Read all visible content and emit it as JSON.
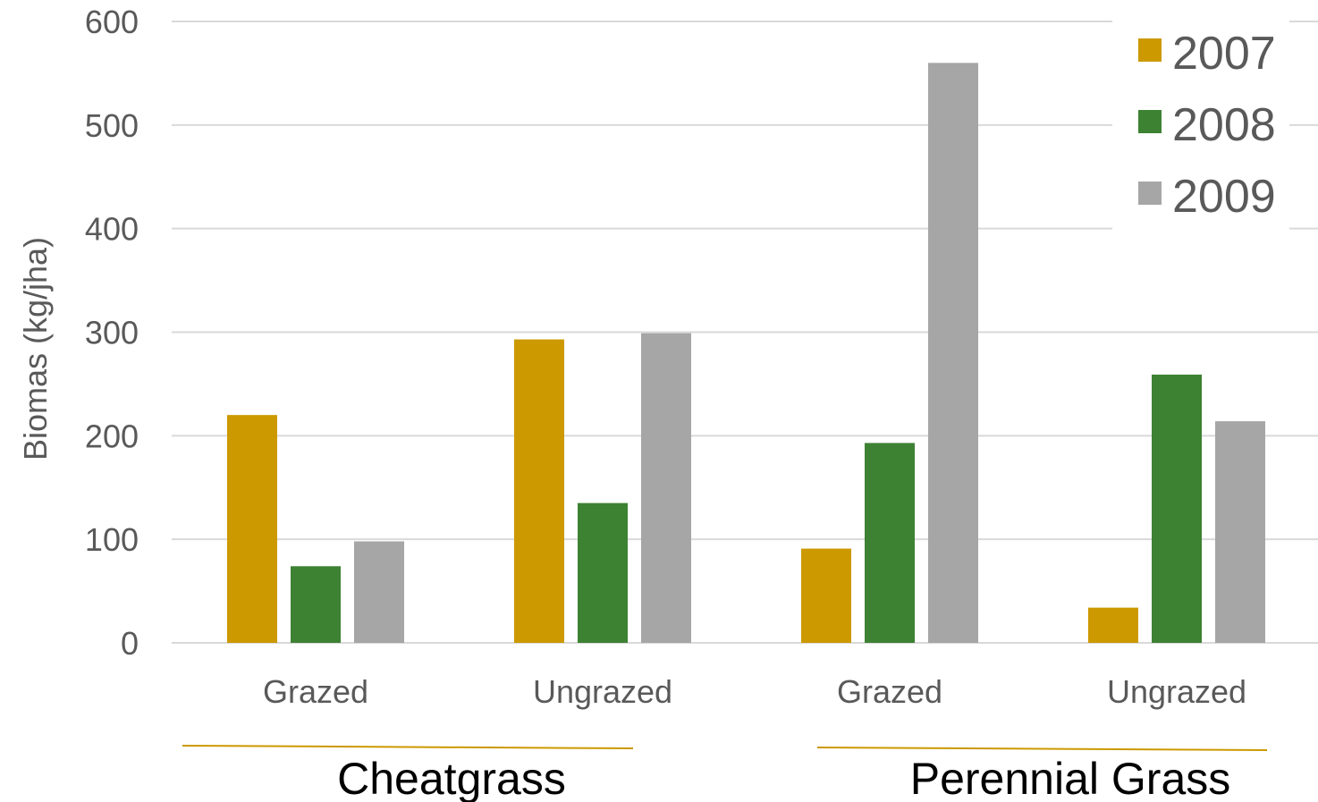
{
  "chart_data": {
    "type": "bar",
    "ylabel": "Biomas (kg/jha)",
    "ylim": [
      0,
      600
    ],
    "yticks": [
      0,
      100,
      200,
      300,
      400,
      500,
      600
    ],
    "grid": true,
    "legend_position": "top-right",
    "categories": [
      "Grazed",
      "Ungrazed",
      "Grazed",
      "Ungrazed"
    ],
    "category_groups": [
      {
        "label": "Cheatgrass",
        "categories": [
          0,
          1
        ]
      },
      {
        "label": "Perennial Grass",
        "categories": [
          2,
          3
        ]
      }
    ],
    "series": [
      {
        "name": "2007",
        "color": "#CC9900",
        "values": [
          220,
          293,
          91,
          34
        ]
      },
      {
        "name": "2008",
        "color": "#3D8133",
        "values": [
          74,
          135,
          193,
          259
        ]
      },
      {
        "name": "2009",
        "color": "#A6A6A6",
        "values": [
          98,
          299,
          560,
          214
        ]
      }
    ],
    "group_line_color": "#CC9900",
    "gridline_color": "#D9D9D9"
  }
}
